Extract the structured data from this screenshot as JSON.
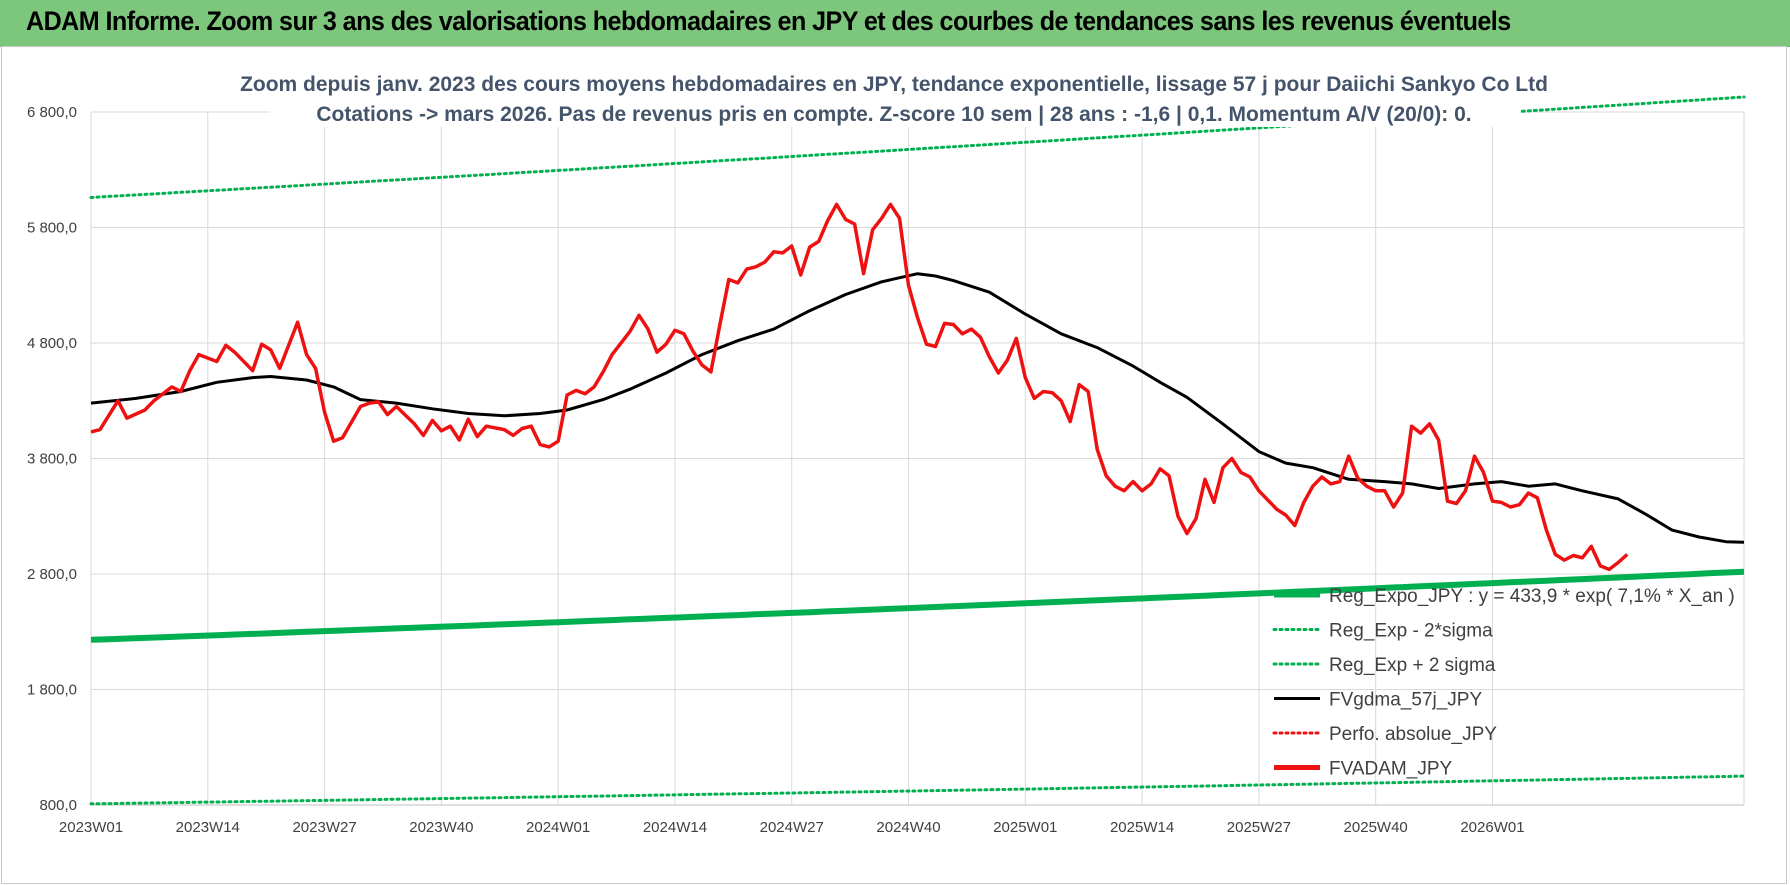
{
  "banner": {
    "title": "ADAM Informe. Zoom sur 3 ans des valorisations hebdomadaires en JPY et des courbes de tendances sans les revenus éventuels"
  },
  "colors": {
    "banner_bg": "#7dc77d",
    "trend_green": "#00b050",
    "ma_black": "#000000",
    "price_red": "#ee1111",
    "title_color": "#44546a"
  },
  "chart_data": {
    "type": "line",
    "title": "Zoom depuis janv. 2023 des cours moyens hebdomadaires en JPY, tendance exponentielle, lissage 57 j pour Daiichi Sankyo Co Ltd",
    "subtitle": "Cotations -> mars 2026. Pas de revenus pris en compte. Z-score 10 sem | 28 ans : -1,6 | 0,1. Momentum A/V (20/0): 0.",
    "xlabel": "",
    "ylabel": "",
    "ylim": [
      800,
      6800
    ],
    "yticks": [
      "800,0",
      "1 800,0",
      "2 800,0",
      "3 800,0",
      "4 800,0",
      "5 800,0",
      "6 800,0"
    ],
    "yticks_values": [
      800,
      1800,
      2800,
      3800,
      4800,
      5800,
      6800
    ],
    "x_tick_labels": [
      "2023W01",
      "2023W14",
      "2023W27",
      "2023W40",
      "2024W01",
      "2024W14",
      "2024W27",
      "2024W40",
      "2025W01",
      "2025W14",
      "2025W27",
      "2025W40",
      "2026W01"
    ],
    "weeks_total": 170,
    "grid": true,
    "legend_position": "bottom-right",
    "series": [
      {
        "name": "Reg_Expo_JPY : y = 433,9 * exp( 7,1% *  X_an )",
        "style": "solid-thick",
        "color": "#00b050",
        "start": 2230,
        "end": 2820
      },
      {
        "name": "Reg_Exp - 2*sigma",
        "style": "dotted",
        "color": "#00b050",
        "start": 810,
        "end": 1050
      },
      {
        "name": "Reg_Exp + 2 sigma",
        "style": "dotted",
        "color": "#00b050",
        "start": 6060,
        "end": 6930
      },
      {
        "name": "FVgdma_57j_JPY",
        "style": "solid",
        "color": "#000000",
        "points": [
          [
            0,
            4280
          ],
          [
            5,
            4320
          ],
          [
            10,
            4380
          ],
          [
            14,
            4460
          ],
          [
            18,
            4500
          ],
          [
            20,
            4510
          ],
          [
            24,
            4480
          ],
          [
            27,
            4420
          ],
          [
            30,
            4310
          ],
          [
            34,
            4280
          ],
          [
            38,
            4230
          ],
          [
            42,
            4190
          ],
          [
            46,
            4170
          ],
          [
            50,
            4190
          ],
          [
            53,
            4220
          ],
          [
            57,
            4310
          ],
          [
            60,
            4400
          ],
          [
            64,
            4540
          ],
          [
            68,
            4700
          ],
          [
            72,
            4820
          ],
          [
            76,
            4920
          ],
          [
            80,
            5080
          ],
          [
            84,
            5220
          ],
          [
            88,
            5330
          ],
          [
            92,
            5400
          ],
          [
            94,
            5380
          ],
          [
            96,
            5340
          ],
          [
            100,
            5240
          ],
          [
            104,
            5050
          ],
          [
            108,
            4880
          ],
          [
            112,
            4760
          ],
          [
            116,
            4600
          ],
          [
            119,
            4460
          ],
          [
            122,
            4330
          ],
          [
            126,
            4100
          ],
          [
            130,
            3860
          ],
          [
            133,
            3760
          ],
          [
            136,
            3720
          ],
          [
            140,
            3620
          ],
          [
            144,
            3600
          ],
          [
            147,
            3580
          ],
          [
            150,
            3540
          ],
          [
            154,
            3580
          ],
          [
            157,
            3600
          ],
          [
            160,
            3560
          ],
          [
            163,
            3580
          ],
          [
            166,
            3520
          ],
          [
            170,
            3450
          ],
          [
            173,
            3320
          ],
          [
            176,
            3180
          ],
          [
            179,
            3120
          ],
          [
            182,
            3080
          ],
          [
            184,
            3075
          ]
        ]
      },
      {
        "name": "Perfo. absolue_JPY",
        "style": "dotted",
        "color": "#ee1111",
        "points": []
      },
      {
        "name": "FVADAM_JPY",
        "style": "solid-thick",
        "color": "#ee1111",
        "points": [
          [
            0,
            4030
          ],
          [
            1,
            4050
          ],
          [
            3,
            4300
          ],
          [
            4,
            4150
          ],
          [
            6,
            4220
          ],
          [
            7,
            4300
          ],
          [
            9,
            4420
          ],
          [
            10,
            4380
          ],
          [
            11,
            4560
          ],
          [
            12,
            4700
          ],
          [
            14,
            4640
          ],
          [
            15,
            4780
          ],
          [
            16,
            4720
          ],
          [
            18,
            4560
          ],
          [
            19,
            4790
          ],
          [
            20,
            4740
          ],
          [
            21,
            4580
          ],
          [
            23,
            4980
          ],
          [
            24,
            4700
          ],
          [
            25,
            4580
          ],
          [
            26,
            4200
          ],
          [
            27,
            3950
          ],
          [
            28,
            3980
          ],
          [
            30,
            4250
          ],
          [
            31,
            4280
          ],
          [
            32,
            4290
          ],
          [
            33,
            4180
          ],
          [
            34,
            4250
          ],
          [
            36,
            4100
          ],
          [
            37,
            4000
          ],
          [
            38,
            4130
          ],
          [
            39,
            4040
          ],
          [
            40,
            4080
          ],
          [
            41,
            3960
          ],
          [
            42,
            4140
          ],
          [
            43,
            3990
          ],
          [
            44,
            4080
          ],
          [
            46,
            4050
          ],
          [
            47,
            4000
          ],
          [
            48,
            4060
          ],
          [
            49,
            4080
          ],
          [
            50,
            3920
          ],
          [
            51,
            3900
          ],
          [
            52,
            3950
          ],
          [
            53,
            4350
          ],
          [
            54,
            4390
          ],
          [
            55,
            4360
          ],
          [
            56,
            4420
          ],
          [
            57,
            4550
          ],
          [
            58,
            4700
          ],
          [
            60,
            4900
          ],
          [
            61,
            5040
          ],
          [
            62,
            4920
          ],
          [
            63,
            4720
          ],
          [
            64,
            4790
          ],
          [
            65,
            4910
          ],
          [
            66,
            4880
          ],
          [
            67,
            4730
          ],
          [
            68,
            4610
          ],
          [
            69,
            4550
          ],
          [
            70,
            4960
          ],
          [
            71,
            5350
          ],
          [
            72,
            5320
          ],
          [
            73,
            5440
          ],
          [
            74,
            5460
          ],
          [
            75,
            5500
          ],
          [
            76,
            5590
          ],
          [
            77,
            5580
          ],
          [
            78,
            5640
          ],
          [
            79,
            5390
          ],
          [
            80,
            5630
          ],
          [
            81,
            5680
          ],
          [
            82,
            5860
          ],
          [
            83,
            6000
          ],
          [
            84,
            5870
          ],
          [
            85,
            5830
          ],
          [
            86,
            5400
          ],
          [
            87,
            5780
          ],
          [
            88,
            5880
          ],
          [
            89,
            6000
          ],
          [
            90,
            5880
          ],
          [
            91,
            5300
          ],
          [
            92,
            5020
          ],
          [
            93,
            4790
          ],
          [
            94,
            4770
          ],
          [
            95,
            4970
          ],
          [
            96,
            4960
          ],
          [
            97,
            4880
          ],
          [
            98,
            4920
          ],
          [
            99,
            4850
          ],
          [
            100,
            4680
          ],
          [
            101,
            4540
          ],
          [
            102,
            4650
          ],
          [
            103,
            4840
          ],
          [
            104,
            4500
          ],
          [
            105,
            4320
          ],
          [
            106,
            4380
          ],
          [
            107,
            4370
          ],
          [
            108,
            4300
          ],
          [
            109,
            4120
          ],
          [
            110,
            4440
          ],
          [
            111,
            4380
          ],
          [
            112,
            3880
          ],
          [
            113,
            3650
          ],
          [
            114,
            3560
          ],
          [
            115,
            3520
          ],
          [
            116,
            3600
          ],
          [
            117,
            3520
          ],
          [
            118,
            3580
          ],
          [
            119,
            3710
          ],
          [
            120,
            3650
          ],
          [
            121,
            3300
          ],
          [
            122,
            3150
          ],
          [
            123,
            3280
          ],
          [
            124,
            3620
          ],
          [
            125,
            3420
          ],
          [
            126,
            3720
          ],
          [
            127,
            3800
          ],
          [
            128,
            3680
          ],
          [
            129,
            3640
          ],
          [
            130,
            3520
          ],
          [
            131,
            3440
          ],
          [
            132,
            3360
          ],
          [
            133,
            3310
          ],
          [
            134,
            3220
          ],
          [
            135,
            3420
          ],
          [
            136,
            3560
          ],
          [
            137,
            3640
          ],
          [
            138,
            3580
          ],
          [
            139,
            3600
          ],
          [
            140,
            3820
          ],
          [
            141,
            3630
          ],
          [
            142,
            3560
          ],
          [
            143,
            3520
          ],
          [
            144,
            3520
          ],
          [
            145,
            3380
          ],
          [
            146,
            3500
          ],
          [
            147,
            4080
          ],
          [
            148,
            4020
          ],
          [
            149,
            4100
          ],
          [
            150,
            3960
          ],
          [
            151,
            3430
          ],
          [
            152,
            3410
          ],
          [
            153,
            3520
          ],
          [
            154,
            3820
          ],
          [
            155,
            3680
          ],
          [
            156,
            3430
          ],
          [
            157,
            3420
          ],
          [
            158,
            3380
          ],
          [
            159,
            3400
          ],
          [
            160,
            3500
          ],
          [
            161,
            3460
          ],
          [
            162,
            3180
          ],
          [
            163,
            2970
          ],
          [
            164,
            2920
          ],
          [
            165,
            2960
          ],
          [
            166,
            2940
          ],
          [
            167,
            3040
          ],
          [
            168,
            2870
          ],
          [
            169,
            2840
          ],
          [
            170,
            2900
          ],
          [
            171,
            2970
          ]
        ]
      }
    ]
  }
}
